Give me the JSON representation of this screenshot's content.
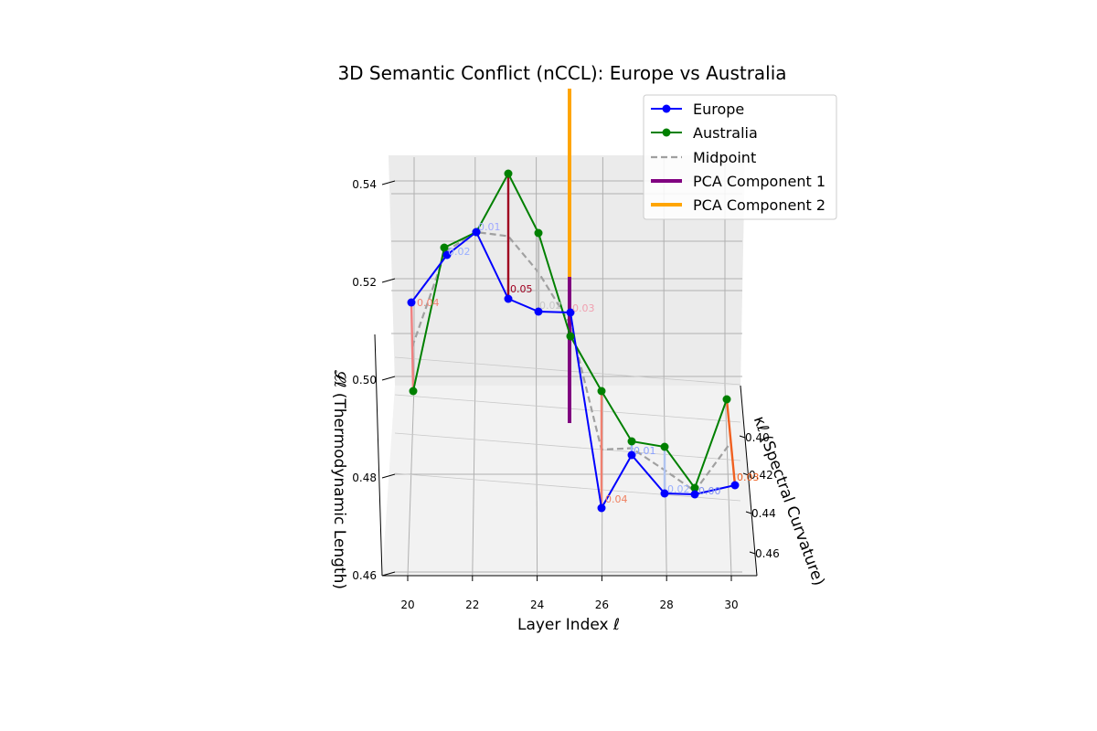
{
  "chart_data": {
    "type": "line",
    "title": "3D Semantic Conflict (nCCL): Europe vs Australia",
    "xlabel": "Layer Index ℓ",
    "ylabel": "κℓ (Spectral Curvature)",
    "zlabel": "𝓛ℓ (Thermodynamic Length)",
    "x_ticks": [
      "20",
      "22",
      "24",
      "26",
      "28",
      "30"
    ],
    "y_ticks": [
      "0.40",
      "0.42",
      "0.44",
      "0.46"
    ],
    "z_ticks": [
      "0.46",
      "0.48",
      "0.50",
      "0.52",
      "0.54"
    ],
    "layers": [
      20,
      21,
      22,
      23,
      24,
      25,
      26,
      27,
      28,
      29,
      30
    ],
    "series": [
      {
        "name": "Europe",
        "color": "#0000ff",
        "z": [
          0.557,
          0.575,
          0.583,
          0.557,
          0.552,
          0.55,
          0.472,
          0.506,
          0.504,
          0.51,
          0.522
        ]
      },
      {
        "name": "Australia",
        "color": "#008000",
        "z": [
          0.527,
          0.578,
          0.583,
          0.607,
          0.581,
          0.546,
          0.531,
          0.512,
          0.506,
          0.51,
          0.532
        ]
      },
      {
        "name": "Midpoint",
        "color": "#a0a0a0"
      },
      {
        "name": "PCA Component 1",
        "color": "#800080"
      },
      {
        "name": "PCA Component 2",
        "color": "#ffa500"
      }
    ],
    "conflict_labels": [
      "0.04",
      "0.02",
      "0.01",
      "0.05",
      "0.02",
      "0.03",
      "0.04",
      "0.01",
      "0.02",
      "0.00",
      "0.03"
    ],
    "legend_position": "upper-right",
    "grid": true
  }
}
